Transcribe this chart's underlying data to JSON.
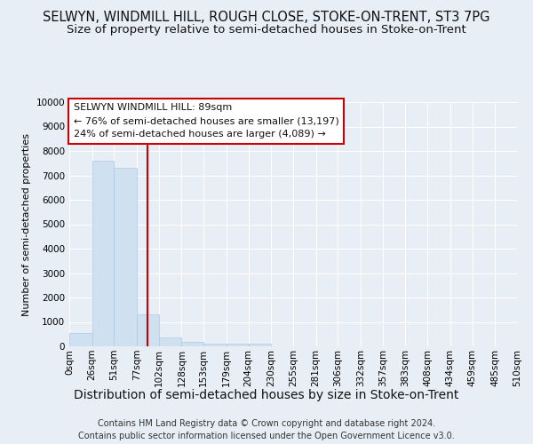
{
  "title": "SELWYN, WINDMILL HILL, ROUGH CLOSE, STOKE-ON-TRENT, ST3 7PG",
  "subtitle": "Size of property relative to semi-detached houses in Stoke-on-Trent",
  "xlabel": "Distribution of semi-detached houses by size in Stoke-on-Trent",
  "ylabel": "Number of semi-detached properties",
  "footnote1": "Contains HM Land Registry data © Crown copyright and database right 2024.",
  "footnote2": "Contains public sector information licensed under the Open Government Licence v3.0.",
  "bins": [
    0,
    26,
    51,
    77,
    102,
    128,
    153,
    179,
    204,
    230,
    255,
    281,
    306,
    332,
    357,
    383,
    408,
    434,
    459,
    485,
    510
  ],
  "bin_labels": [
    "0sqm",
    "26sqm",
    "51sqm",
    "77sqm",
    "102sqm",
    "128sqm",
    "153sqm",
    "179sqm",
    "204sqm",
    "230sqm",
    "255sqm",
    "281sqm",
    "306sqm",
    "332sqm",
    "357sqm",
    "383sqm",
    "408sqm",
    "434sqm",
    "459sqm",
    "485sqm",
    "510sqm"
  ],
  "bar_heights": [
    550,
    7600,
    7300,
    1300,
    350,
    175,
    100,
    100,
    100,
    0,
    0,
    0,
    0,
    0,
    0,
    0,
    0,
    0,
    0,
    0
  ],
  "bar_color": "#cfe0f0",
  "bar_edge_color": "#b0c8e0",
  "property_size": 89,
  "annotation_title": "SELWYN WINDMILL HILL: 89sqm",
  "annotation_line1": "← 76% of semi-detached houses are smaller (13,197)",
  "annotation_line2": "24% of semi-detached houses are larger (4,089) →",
  "annotation_box_color": "#ffffff",
  "annotation_border_color": "#cc0000",
  "ylim": [
    0,
    10000
  ],
  "yticks": [
    0,
    1000,
    2000,
    3000,
    4000,
    5000,
    6000,
    7000,
    8000,
    9000,
    10000
  ],
  "bg_color": "#e8eef5",
  "plot_bg_color": "#e8eef5",
  "grid_color": "#ffffff",
  "title_fontsize": 10.5,
  "subtitle_fontsize": 9.5,
  "ylabel_fontsize": 8,
  "xlabel_fontsize": 10,
  "tick_fontsize": 7.5,
  "annotation_fontsize": 8,
  "footnote_fontsize": 7
}
